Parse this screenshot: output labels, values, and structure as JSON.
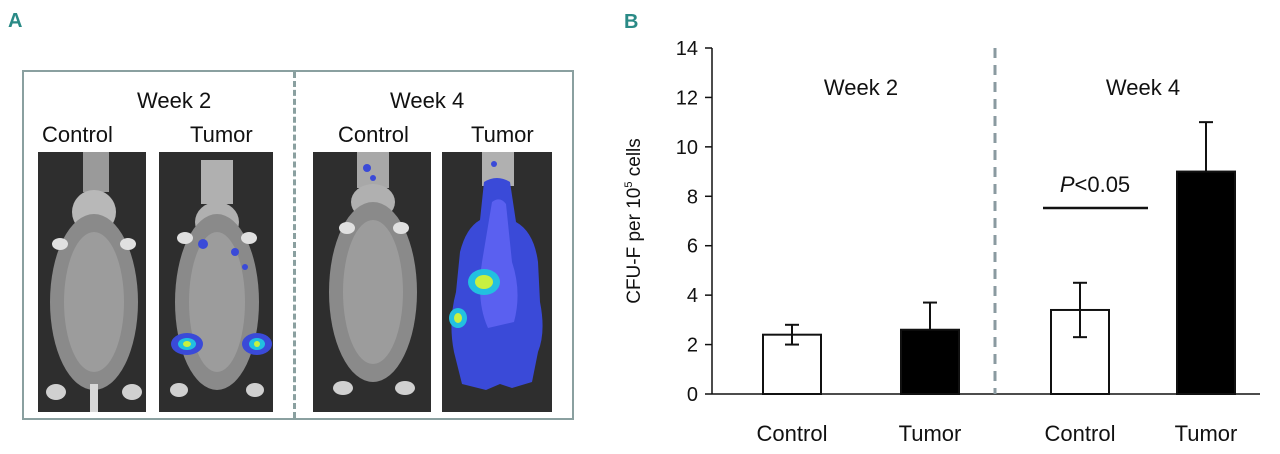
{
  "panel_a": {
    "letter": "A",
    "groups": [
      {
        "week": "Week 2",
        "labels": [
          "Control",
          "Tumor"
        ]
      },
      {
        "week": "Week 4",
        "labels": [
          "Control",
          "Tumor"
        ]
      }
    ],
    "colors": {
      "frame": "#8aa0a0",
      "signal_low": "#3a4ad8",
      "signal_mid": "#22c0e0",
      "signal_high": "#c8f040"
    }
  },
  "chart_data": {
    "type": "bar",
    "panel_letter": "B",
    "categories": [
      "Control",
      "Tumor",
      "Control",
      "Tumor"
    ],
    "groups": [
      "Week 2",
      "Week 4"
    ],
    "series": [
      {
        "name": "Control",
        "fill": "#ffffff",
        "values": [
          2.4,
          null,
          3.4,
          null
        ],
        "errors": [
          0.4,
          null,
          1.1,
          null
        ]
      },
      {
        "name": "Tumor",
        "fill": "#000000",
        "values": [
          null,
          2.6,
          null,
          9.0
        ],
        "errors": [
          null,
          1.1,
          null,
          2.0
        ]
      }
    ],
    "values": [
      2.4,
      2.6,
      3.4,
      9.0
    ],
    "errors": [
      0.4,
      1.1,
      1.1,
      2.0
    ],
    "ylabel_main": "CFU-F per 10",
    "ylabel_sup": "5",
    "ylabel_tail": " cells",
    "ylim": [
      0,
      14
    ],
    "yticks": [
      0,
      2,
      4,
      6,
      8,
      10,
      12,
      14
    ],
    "annotation": {
      "italic": "P",
      "text": "<0.05"
    },
    "divider_color": "#8a9aa0"
  }
}
